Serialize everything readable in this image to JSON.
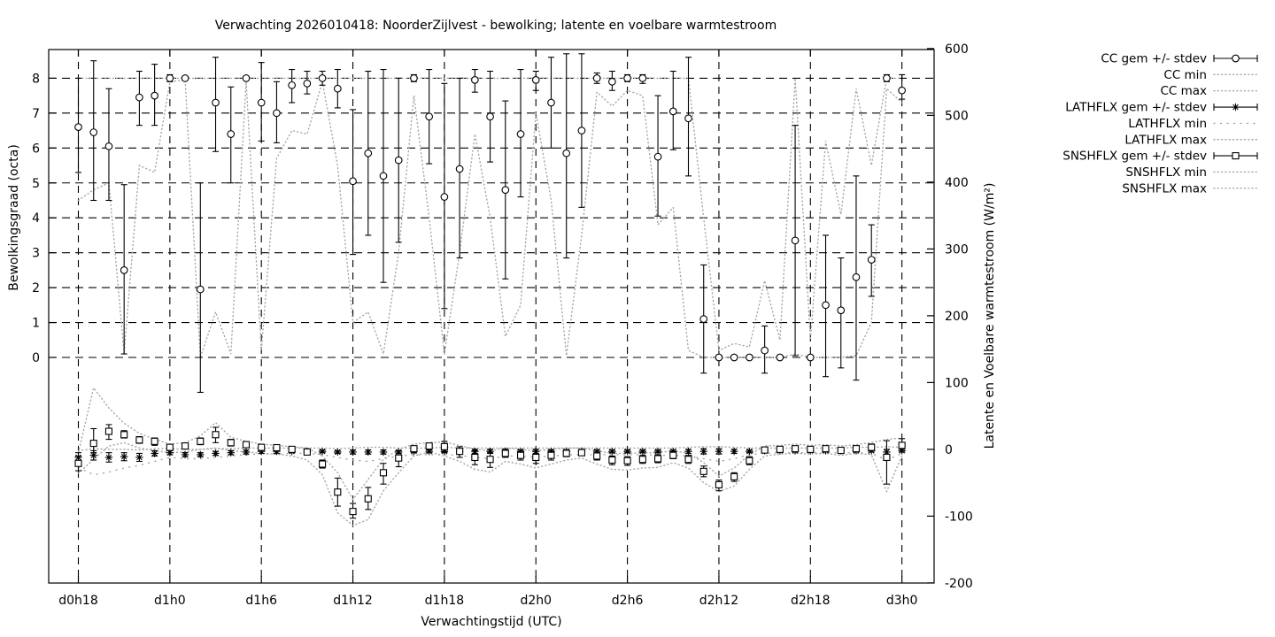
{
  "title": "Verwachting 2026010418: NoorderZijlvest - bewolking; latente en voelbare warmtestroom",
  "axes": {
    "x_label": "Verwachtingstijd (UTC)",
    "y_left_label": "Bewolkingsgraad (octa)",
    "y_right_label": "Latente en Voelbare warmtestroom (W/m²)",
    "y_left_ticks": [
      0,
      1,
      2,
      3,
      4,
      5,
      6,
      7,
      8
    ],
    "y_right_ticks": [
      -200,
      -100,
      0,
      100,
      200,
      300,
      400,
      500,
      600
    ],
    "x_ticks": [
      {
        "label": "d0h18",
        "hour": 18
      },
      {
        "label": "d1h0",
        "hour": 24
      },
      {
        "label": "d1h6",
        "hour": 30
      },
      {
        "label": "d1h12",
        "hour": 36
      },
      {
        "label": "d1h18",
        "hour": 42
      },
      {
        "label": "d2h0",
        "hour": 48
      },
      {
        "label": "d2h6",
        "hour": 54
      },
      {
        "label": "d2h12",
        "hour": 60
      },
      {
        "label": "d2h18",
        "hour": 66
      },
      {
        "label": "d3h0",
        "hour": 72
      }
    ]
  },
  "legend": {
    "entries": [
      {
        "label": "CC gem +/- stdev",
        "style": "errbar",
        "marker": "circle"
      },
      {
        "label": "CC min",
        "style": "dotted"
      },
      {
        "label": "CC max",
        "style": "dotted"
      },
      {
        "label": "LATHFLX gem +/- stdev",
        "style": "errbar",
        "marker": "asterisk"
      },
      {
        "label": "LATHFLX min",
        "style": "sparse-dotted"
      },
      {
        "label": "LATHFLX max",
        "style": "dotted"
      },
      {
        "label": "SNSHFLX gem +/- stdev",
        "style": "errbar",
        "marker": "square"
      },
      {
        "label": "SNSHFLX min",
        "style": "dotted"
      },
      {
        "label": "SNSHFLX max",
        "style": "dotted"
      }
    ]
  },
  "colors": {
    "foreground": "#000000",
    "dotted_curves": "#a6a6a6",
    "background": "#ffffff"
  },
  "chart_data": {
    "type": "line",
    "x_unit": "forecast hour (UTC)",
    "y_left_range": [
      0,
      8
    ],
    "y_right_range": [
      -200,
      600
    ],
    "grid": true,
    "legend_position": "outside-top-right",
    "x_hours": [
      18,
      19,
      20,
      21,
      22,
      23,
      24,
      25,
      26,
      27,
      28,
      29,
      30,
      31,
      32,
      33,
      34,
      35,
      36,
      37,
      38,
      39,
      40,
      41,
      42,
      43,
      44,
      45,
      46,
      47,
      48,
      49,
      50,
      51,
      52,
      53,
      54,
      55,
      56,
      57,
      58,
      59,
      60,
      61,
      62,
      63,
      64,
      65,
      66,
      67,
      68,
      69,
      70,
      71,
      72
    ],
    "series": [
      {
        "name": "CC gem +/- stdev",
        "axis": "left",
        "style": "errorbar",
        "marker": "circle",
        "mean": [
          6.6,
          6.45,
          6.05,
          2.5,
          7.45,
          7.5,
          8,
          8,
          1.95,
          7.3,
          6.4,
          8,
          7.3,
          7.0,
          7.8,
          7.85,
          8,
          7.7,
          5.05,
          5.85,
          5.2,
          5.65,
          8,
          6.9,
          4.6,
          5.4,
          7.95,
          6.9,
          4.8,
          6.4,
          7.95,
          7.3,
          5.85,
          6.5,
          8,
          7.9,
          8,
          8,
          5.75,
          7.05,
          6.85,
          1.1,
          0,
          0,
          0,
          0.2,
          0,
          3.35,
          0,
          1.5,
          1.35,
          2.3,
          2.8,
          8,
          7.65
        ],
        "lo": [
          5.3,
          4.5,
          4.5,
          0.1,
          6.65,
          6.65,
          7.9,
          7.95,
          -1.0,
          5.9,
          5.0,
          7.95,
          6.2,
          6.15,
          7.3,
          7.55,
          7.8,
          7.15,
          2.95,
          3.5,
          2.15,
          3.3,
          7.9,
          5.55,
          1.4,
          2.85,
          7.6,
          5.6,
          2.25,
          4.6,
          7.65,
          6.0,
          2.85,
          4.3,
          7.85,
          7.65,
          7.9,
          7.85,
          4.05,
          5.95,
          5.2,
          -0.45,
          0,
          0,
          0,
          -0.45,
          0,
          0.05,
          0,
          -0.55,
          -0.3,
          -0.65,
          1.75,
          7.9,
          7.4
        ],
        "hi": [
          8.0,
          8.5,
          7.7,
          4.95,
          8.2,
          8.4,
          8.1,
          8.05,
          5.0,
          8.6,
          7.75,
          8.05,
          8.45,
          7.9,
          8.25,
          8.2,
          8.2,
          8.25,
          7.1,
          8.2,
          8.25,
          8.0,
          8.1,
          8.25,
          7.85,
          8.0,
          8.25,
          8.2,
          7.35,
          8.25,
          8.2,
          8.6,
          8.7,
          8.7,
          8.15,
          8.2,
          8.1,
          8.1,
          7.5,
          8.2,
          8.6,
          2.65,
          0,
          0,
          0,
          0.9,
          0,
          6.65,
          0,
          3.5,
          2.85,
          5.2,
          3.8,
          8.1,
          8.1
        ]
      },
      {
        "name": "CC min",
        "axis": "left",
        "style": "dotted",
        "values": [
          4.5,
          4.8,
          5.0,
          0.1,
          5.5,
          5.3,
          7.9,
          7.95,
          0,
          1.3,
          0.1,
          7.9,
          0.2,
          5.7,
          6.5,
          6.4,
          7.9,
          5.5,
          1.0,
          1.3,
          0.1,
          3.0,
          7.5,
          4.0,
          0.1,
          3.0,
          6.4,
          4.0,
          0.6,
          1.5,
          7.0,
          4.5,
          0.05,
          3.5,
          7.6,
          7.2,
          7.65,
          7.5,
          3.8,
          4.3,
          0.2,
          0,
          0,
          0,
          0,
          0,
          0,
          0.1,
          0,
          0,
          0,
          0.05,
          1.0,
          7.7,
          7.3
        ]
      },
      {
        "name": "CC max",
        "axis": "left",
        "style": "dotted",
        "values": [
          8,
          8,
          8,
          8,
          8,
          8,
          8,
          8,
          8,
          8,
          8,
          8,
          8,
          8,
          8,
          8,
          8,
          8,
          8,
          8,
          8,
          8,
          8,
          8,
          8,
          8,
          8,
          8,
          8,
          8,
          8,
          8,
          8,
          8,
          8,
          8,
          8,
          8,
          8,
          8,
          8,
          4.0,
          0.2,
          0.4,
          0.3,
          2.2,
          0.5,
          8,
          0.5,
          6.2,
          4.1,
          7.7,
          5.5,
          8,
          8
        ]
      },
      {
        "name": "LATHFLX gem +/- stdev",
        "axis": "right",
        "style": "errorbar",
        "marker": "asterisk",
        "mean": [
          -12,
          -9,
          -12,
          -11,
          -12,
          -6,
          -5,
          -8,
          -8,
          -6,
          -5,
          -4,
          -3,
          -3,
          -3,
          -3,
          -3,
          -4,
          -4,
          -4,
          -4,
          -4,
          -3,
          -3,
          -3,
          -3,
          -3,
          -3,
          -3,
          -3,
          -3,
          -3,
          -3,
          -3,
          -3,
          -3,
          -3,
          -3,
          -3,
          -3,
          -3,
          -3,
          -3,
          -3,
          -3,
          -2,
          -2,
          -2,
          -2,
          -2,
          -2,
          -2,
          -2,
          -4,
          -2
        ],
        "lo": [
          -19,
          -16,
          -19,
          -17,
          -18,
          -10,
          -8,
          -11,
          -11,
          -9,
          -8,
          -7,
          -6,
          -6,
          -5,
          -5,
          -5,
          -6,
          -7,
          -7,
          -7,
          -6,
          -5,
          -5,
          -5,
          -5,
          -6,
          -6,
          -5,
          -5,
          -6,
          -5,
          -5,
          -5,
          -5,
          -5,
          -5,
          -5,
          -5,
          -5,
          -6,
          -7,
          -7,
          -6,
          -5,
          -4,
          -4,
          -4,
          -4,
          -4,
          -4,
          -4,
          -4,
          -8,
          -4
        ],
        "hi": [
          -5,
          -2,
          -5,
          -5,
          -6,
          -2,
          -2,
          -5,
          -5,
          -3,
          -2,
          -1,
          0,
          0,
          -1,
          -1,
          -1,
          -2,
          -1,
          -1,
          -1,
          -2,
          -1,
          -1,
          -1,
          -1,
          0,
          0,
          -1,
          -1,
          0,
          -1,
          -1,
          -1,
          -1,
          -1,
          -1,
          -1,
          -1,
          -1,
          0,
          1,
          1,
          0,
          -1,
          0,
          0,
          0,
          0,
          0,
          0,
          0,
          0,
          0,
          0
        ]
      },
      {
        "name": "LATHFLX min",
        "axis": "right",
        "style": "sparse-dotted",
        "values": [
          -27,
          -38,
          -34,
          -28,
          -24,
          -18,
          -12,
          -14,
          -14,
          -12,
          -10,
          -8,
          -7,
          -7,
          -6,
          -6,
          -8,
          -12,
          -16,
          -18,
          -14,
          -10,
          -8,
          -8,
          -8,
          -9,
          -12,
          -14,
          -10,
          -10,
          -12,
          -10,
          -8,
          -8,
          -8,
          -8,
          -8,
          -8,
          -9,
          -9,
          -10,
          -14,
          -18,
          -14,
          -8,
          -6,
          -5,
          -5,
          -5,
          -5,
          -5,
          -5,
          -6,
          -16,
          -6
        ]
      },
      {
        "name": "LATHFLX max",
        "axis": "right",
        "style": "dotted",
        "values": [
          -2,
          1,
          0,
          0,
          -1,
          1,
          1,
          0,
          0,
          1,
          1,
          2,
          2,
          2,
          2,
          2,
          2,
          1,
          2,
          3,
          3,
          2,
          2,
          2,
          3,
          2,
          2,
          2,
          2,
          2,
          2,
          2,
          2,
          2,
          2,
          2,
          2,
          2,
          2,
          2,
          3,
          4,
          4,
          3,
          2,
          2,
          2,
          2,
          2,
          2,
          2,
          3,
          3,
          4,
          3
        ]
      },
      {
        "name": "SNSHFLX gem +/- stdev",
        "axis": "right",
        "style": "errorbar",
        "marker": "square",
        "mean": [
          -21,
          9,
          27,
          22,
          14,
          12,
          3,
          5,
          12,
          22,
          10,
          7,
          3,
          2.5,
          0,
          -4,
          -22,
          -64,
          -93,
          -74,
          -35,
          -13,
          1,
          5,
          4,
          -3,
          -12,
          -15,
          -6,
          -9,
          -12,
          -9,
          -6,
          -5,
          -10,
          -16,
          -17,
          -15,
          -14,
          -9,
          -15,
          -33,
          -53,
          -41,
          -17,
          -1,
          0,
          1,
          0,
          1,
          -1.5,
          1,
          3,
          -12,
          6
        ],
        "lo": [
          -32,
          -5,
          15,
          17,
          9,
          6,
          0,
          1,
          7,
          10,
          5,
          3,
          0,
          0,
          -3,
          -8,
          -28,
          -85,
          -103,
          -90,
          -52,
          -26,
          -2,
          1,
          -4,
          -12,
          -23,
          -27,
          -12,
          -16,
          -21,
          -16,
          -11,
          -9,
          -16,
          -23,
          -24,
          -21,
          -20,
          -14,
          -21,
          -41,
          -62,
          -48,
          -23,
          -5,
          -3,
          -2,
          -3,
          -2,
          -5,
          -2,
          -2,
          -52,
          -4
        ],
        "hi": [
          -10,
          31,
          37,
          28,
          19,
          17,
          7,
          9,
          17,
          33,
          15,
          11,
          6,
          5,
          3,
          0,
          -16,
          -43,
          -81,
          -57,
          -21,
          -2,
          4,
          9,
          12,
          4,
          -2,
          -5,
          0,
          -3,
          -3,
          -3,
          -1,
          -1,
          -5,
          -10,
          -11,
          -9,
          -8,
          -4,
          -9,
          -25,
          -46,
          -35,
          -11,
          3,
          3,
          5,
          3,
          4,
          2,
          5,
          8,
          13,
          16
        ]
      },
      {
        "name": "SNSHFLX min",
        "axis": "right",
        "style": "dotted",
        "values": [
          -36,
          -15,
          5,
          10,
          2,
          -2,
          -5,
          -4,
          0,
          2,
          -2,
          -4,
          -6,
          -7,
          -10,
          -16,
          -38,
          -95,
          -114,
          -105,
          -62,
          -35,
          -10,
          -4,
          -10,
          -18,
          -30,
          -34,
          -18,
          -22,
          -28,
          -22,
          -16,
          -13,
          -22,
          -30,
          -31,
          -28,
          -27,
          -20,
          -28,
          -50,
          -63,
          -55,
          -30,
          -10,
          -7,
          -6,
          -7,
          -6,
          -9,
          -6,
          -8,
          -63,
          -10
        ]
      },
      {
        "name": "SNSHFLX max",
        "axis": "right",
        "style": "dotted",
        "values": [
          -5,
          92,
          62,
          39,
          24,
          15,
          8,
          10,
          20,
          40,
          18,
          12,
          8,
          6,
          4,
          2,
          -10,
          -35,
          -75,
          -45,
          -15,
          0,
          8,
          10,
          11,
          6,
          0,
          -2,
          2,
          0,
          -2,
          0,
          2,
          2,
          -2,
          -6,
          -6,
          -5,
          -5,
          -2,
          -6,
          -20,
          -40,
          -28,
          -8,
          5,
          6,
          8,
          6,
          7,
          5,
          7,
          10,
          15,
          17
        ]
      }
    ]
  }
}
